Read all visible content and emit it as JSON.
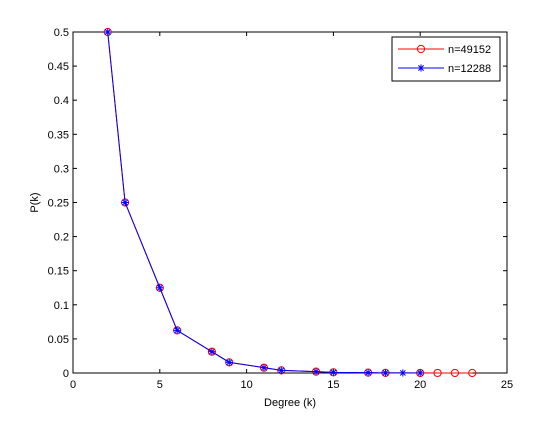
{
  "chart_data": {
    "type": "line",
    "title": "",
    "xlabel": "Degree (k)",
    "ylabel": "P(k)",
    "xlim": [
      0,
      25
    ],
    "ylim": [
      0,
      0.5
    ],
    "xticks": [
      0,
      5,
      10,
      15,
      20,
      25
    ],
    "yticks": [
      0,
      0.05,
      0.1,
      0.15,
      0.2,
      0.25,
      0.3,
      0.35,
      0.4,
      0.45,
      0.5
    ],
    "xtick_labels": [
      "0",
      "5",
      "10",
      "15",
      "20",
      "25"
    ],
    "ytick_labels": [
      "0",
      "0.05",
      "0.1",
      "0.15",
      "0.2",
      "0.25",
      "0.3",
      "0.35",
      "0.4",
      "0.45",
      "0.5"
    ],
    "grid": false,
    "legend_position": "top-right",
    "series": [
      {
        "name": "n=49152",
        "color": "#ff0000",
        "marker": "circle",
        "x": [
          2,
          3,
          5,
          6,
          8,
          9,
          11,
          12,
          14,
          15,
          17,
          18,
          20,
          21,
          22,
          23
        ],
        "y": [
          0.5,
          0.25,
          0.125,
          0.0625,
          0.03125,
          0.015625,
          0.0078,
          0.0039,
          0.002,
          0.001,
          0.0005,
          0.0002,
          0.0001,
          6e-05,
          3e-05,
          1e-05
        ]
      },
      {
        "name": "n=12288",
        "color": "#0000ff",
        "marker": "star",
        "x": [
          2,
          3,
          5,
          6,
          8,
          9,
          11,
          12,
          14,
          15,
          17,
          18,
          19,
          20
        ],
        "y": [
          0.5,
          0.25,
          0.125,
          0.0625,
          0.03125,
          0.015625,
          0.0078,
          0.0039,
          0.002,
          0.001,
          0.0005,
          0.0002,
          0.0001,
          5e-05
        ]
      }
    ]
  }
}
